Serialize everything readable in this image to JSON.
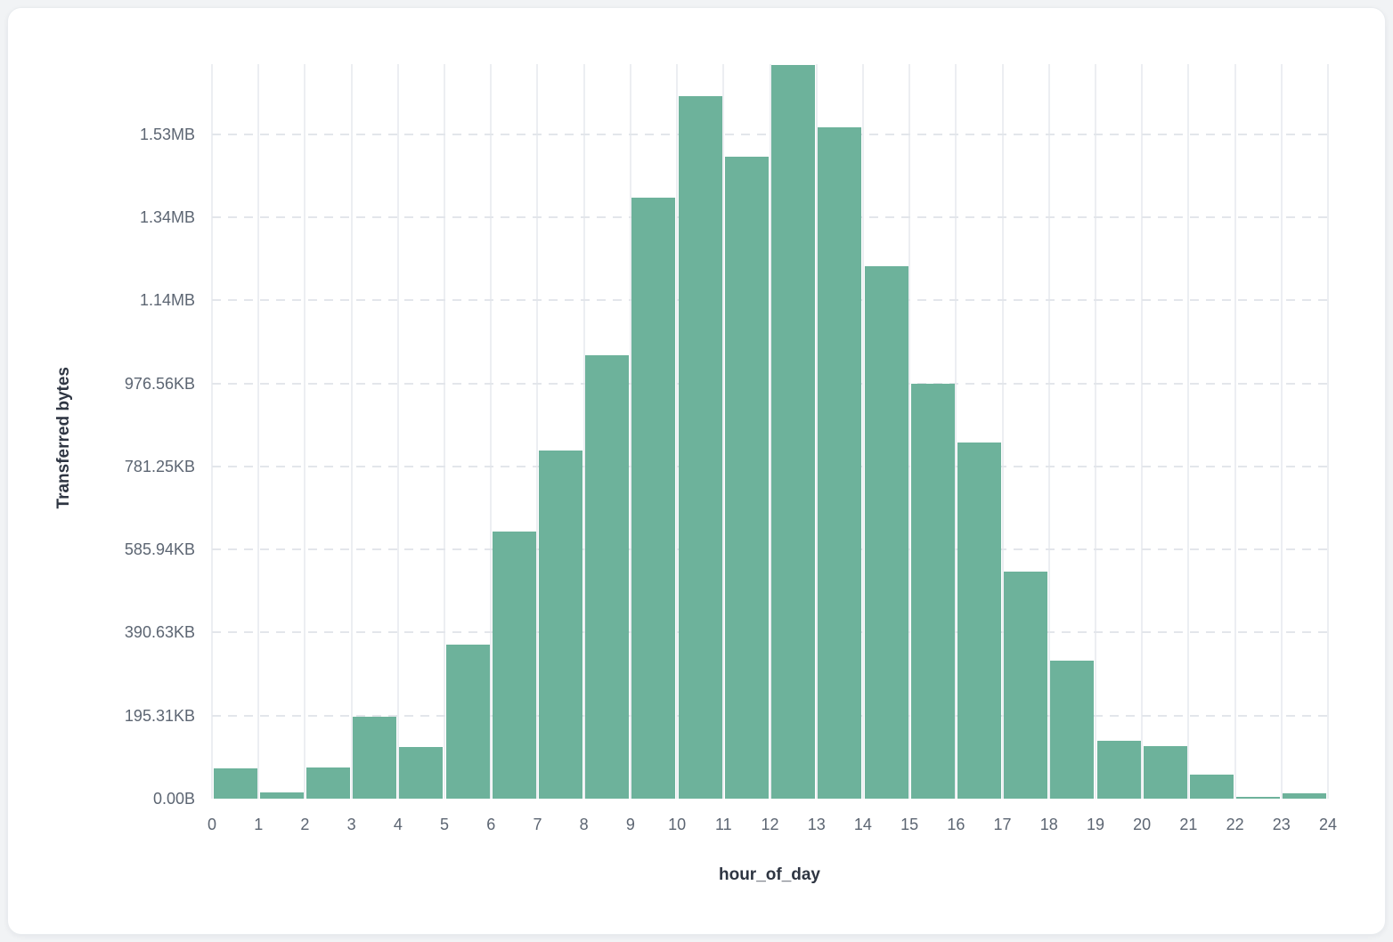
{
  "page": {
    "background_color": "#f1f3f5",
    "card_color": "#ffffff"
  },
  "chart_data": {
    "type": "bar",
    "title": "",
    "xlabel": "hour_of_day",
    "ylabel": "Transferred bytes",
    "legend": "none",
    "grid": {
      "vertical": "solid",
      "horizontal": "dashed"
    },
    "bar_color": "#6db29b",
    "tick_color": "#5c6572",
    "axis_title_color": "#2e3542",
    "x_tick_labels": [
      "0",
      "1",
      "2",
      "3",
      "4",
      "5",
      "6",
      "7",
      "8",
      "9",
      "10",
      "11",
      "12",
      "13",
      "14",
      "15",
      "16",
      "17",
      "18",
      "19",
      "20",
      "21",
      "22",
      "23",
      "24"
    ],
    "y_tick_labels": [
      "0.00B",
      "195.31KB",
      "390.63KB",
      "585.94KB",
      "781.25KB",
      "976.56KB",
      "1.14MB",
      "1.34MB",
      "1.53MB"
    ],
    "y_tick_bytes": [
      0,
      200000,
      400000,
      600000,
      800000,
      1000000,
      1200000,
      1400000,
      1600000
    ],
    "ylim_bytes": [
      0,
      1770000
    ],
    "bin_hours": [
      0,
      1,
      2,
      3,
      4,
      5,
      6,
      7,
      8,
      9,
      10,
      11,
      12,
      13,
      14,
      15,
      16,
      17,
      18,
      19,
      20,
      21,
      22,
      23
    ],
    "values_bytes": [
      72000,
      14000,
      75000,
      197000,
      125000,
      370000,
      644000,
      839000,
      1068000,
      1446000,
      1692000,
      1546000,
      1767000,
      1617000,
      1282000,
      1000000,
      858000,
      547000,
      333000,
      140000,
      126000,
      57000,
      4300,
      13000
    ]
  }
}
